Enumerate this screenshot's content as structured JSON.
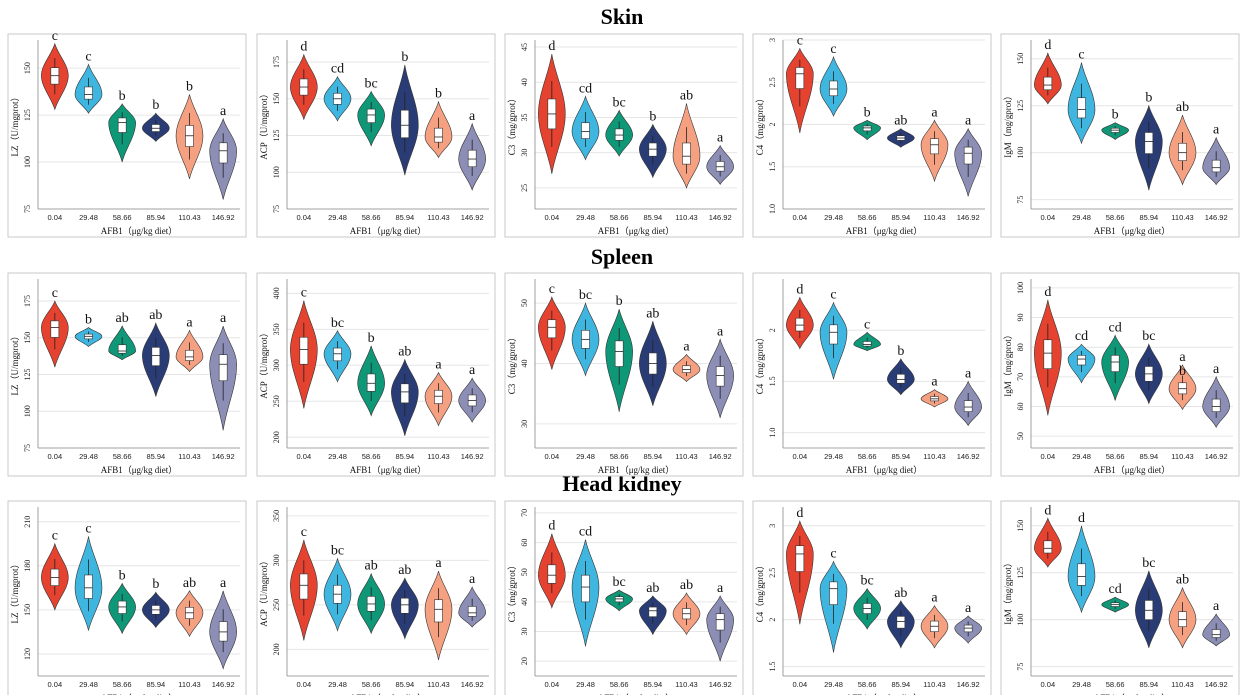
{
  "sections": [
    {
      "title": "Skin"
    },
    {
      "title": "Spleen"
    },
    {
      "title": "Head kidney"
    }
  ],
  "x_axis_label": "AFB1（μg/kg diet）",
  "x_ticks": [
    "0.04",
    "29.48",
    "58.66",
    "85.94",
    "110.43",
    "146.92"
  ],
  "colors": [
    "#e5432f",
    "#3fb6df",
    "#0e9878",
    "#2a3c75",
    "#f4a081",
    "#8c8eb6"
  ],
  "chart_data": [
    {
      "section": "Skin",
      "type": "violin",
      "ylabel": "LZ（U/mgprot）",
      "ylim": [
        75,
        165
      ],
      "yticks": [
        75,
        100,
        125,
        150
      ],
      "medians": [
        146,
        136,
        121,
        118,
        114,
        106
      ],
      "ranges": [
        [
          128,
          163
        ],
        [
          126,
          152
        ],
        [
          100,
          131
        ],
        [
          111,
          126
        ],
        [
          91,
          136
        ],
        [
          80,
          123
        ]
      ],
      "letters": [
        "c",
        "c",
        "b",
        "b",
        "b",
        "a"
      ]
    },
    {
      "section": "Skin",
      "type": "violin",
      "ylabel": "ACP（U/mgprot）",
      "ylim": [
        75,
        190
      ],
      "yticks": [
        75,
        100,
        125,
        150,
        175
      ],
      "medians": [
        158,
        150,
        139,
        132,
        124,
        109
      ],
      "ranges": [
        [
          136,
          180
        ],
        [
          135,
          165
        ],
        [
          118,
          155
        ],
        [
          98,
          173
        ],
        [
          110,
          148
        ],
        [
          88,
          133
        ]
      ],
      "letters": [
        "d",
        "cd",
        "bc",
        "b",
        "b",
        "a"
      ]
    },
    {
      "section": "Skin",
      "type": "violin",
      "ylabel": "C3（mg/gprot）",
      "ylim": [
        22,
        46
      ],
      "yticks": [
        25,
        30,
        35,
        40,
        45
      ],
      "medians": [
        35.5,
        33,
        32.5,
        30.5,
        29.5,
        28
      ],
      "ranges": [
        [
          27,
          44
        ],
        [
          29,
          38
        ],
        [
          29.5,
          36
        ],
        [
          26.5,
          34
        ],
        [
          25,
          37
        ],
        [
          25.5,
          31
        ]
      ],
      "letters": [
        "d",
        "cd",
        "bc",
        "b",
        "ab",
        "a"
      ]
    },
    {
      "section": "Skin",
      "type": "violin",
      "ylabel": "C4（mg/gprot）",
      "ylim": [
        1,
        3
      ],
      "yticks": [
        1.0,
        1.5,
        2.0,
        2.5,
        3.0
      ],
      "medians": [
        2.6,
        2.42,
        1.96,
        1.84,
        1.76,
        1.66
      ],
      "ranges": [
        [
          1.9,
          2.9
        ],
        [
          2.1,
          2.8
        ],
        [
          1.82,
          2.05
        ],
        [
          1.73,
          1.95
        ],
        [
          1.33,
          2.05
        ],
        [
          1.15,
          1.95
        ]
      ],
      "letters": [
        "c",
        "c",
        "b",
        "ab",
        "a",
        "a"
      ]
    },
    {
      "section": "Skin",
      "type": "violin",
      "ylabel": "IgM（mg/gprot）",
      "ylim": [
        70,
        160
      ],
      "yticks": [
        75,
        100,
        125,
        150
      ],
      "medians": [
        136,
        123,
        112,
        106,
        100,
        92
      ],
      "ranges": [
        [
          126,
          153
        ],
        [
          105,
          148
        ],
        [
          107,
          116
        ],
        [
          80,
          125
        ],
        [
          83,
          120
        ],
        [
          83,
          108
        ]
      ],
      "letters": [
        "d",
        "c",
        "b",
        "b",
        "ab",
        "a"
      ]
    },
    {
      "section": "Spleen",
      "type": "violin",
      "ylabel": "LZ（U/mgprot）",
      "ylim": [
        75,
        190
      ],
      "yticks": [
        75,
        100,
        125,
        150,
        175
      ],
      "medians": [
        157,
        151,
        141,
        138,
        137,
        132
      ],
      "ranges": [
        [
          130,
          175
        ],
        [
          144,
          157
        ],
        [
          135,
          158
        ],
        [
          110,
          160
        ],
        [
          127,
          155
        ],
        [
          87,
          158
        ]
      ],
      "letters": [
        "c",
        "b",
        "ab",
        "ab",
        "a",
        "a"
      ]
    },
    {
      "section": "Spleen",
      "type": "violin",
      "ylabel": "ACP（U/mgprot）",
      "ylim": [
        185,
        420
      ],
      "yticks": [
        200,
        250,
        300,
        350,
        400
      ],
      "medians": [
        322,
        316,
        275,
        263,
        257,
        251
      ],
      "ranges": [
        [
          240,
          390
        ],
        [
          277,
          348
        ],
        [
          230,
          327
        ],
        [
          202,
          308
        ],
        [
          216,
          290
        ],
        [
          221,
          282
        ]
      ],
      "letters": [
        "c",
        "bc",
        "b",
        "ab",
        "a",
        "a"
      ]
    },
    {
      "section": "Spleen",
      "type": "violin",
      "ylabel": "C3（mg/gprot）",
      "ylim": [
        26,
        54
      ],
      "yticks": [
        30,
        40,
        50
      ],
      "medians": [
        46,
        44,
        42,
        40,
        39,
        38
      ],
      "ranges": [
        [
          39,
          51
        ],
        [
          38,
          50
        ],
        [
          32,
          49
        ],
        [
          33,
          47
        ],
        [
          37,
          41.5
        ],
        [
          31,
          44
        ]
      ],
      "letters": [
        "c",
        "bc",
        "b",
        "ab",
        "a",
        "a"
      ]
    },
    {
      "section": "Spleen",
      "type": "violin",
      "ylabel": "C4（mg/gprot）",
      "ylim": [
        0.85,
        2.5
      ],
      "yticks": [
        1.0,
        1.5,
        2.0
      ],
      "medians": [
        2.05,
        1.98,
        1.86,
        1.52,
        1.33,
        1.25
      ],
      "ranges": [
        [
          1.82,
          2.32
        ],
        [
          1.52,
          2.27
        ],
        [
          1.8,
          1.98
        ],
        [
          1.37,
          1.72
        ],
        [
          1.25,
          1.42
        ],
        [
          1.07,
          1.5
        ]
      ],
      "letters": [
        "d",
        "c",
        "c",
        "b",
        "a",
        "a"
      ]
    },
    {
      "section": "Spleen",
      "type": "violin",
      "ylabel": "IgM（mg/gprot）",
      "ylim": [
        46,
        103
      ],
      "yticks": [
        50,
        60,
        70,
        80,
        90,
        100
      ],
      "medians": [
        78,
        76,
        75,
        71,
        66,
        60
      ],
      "ranges": [
        [
          57,
          96
        ],
        [
          68,
          81
        ],
        [
          62,
          84
        ],
        [
          61,
          81
        ],
        [
          59,
          74
        ],
        [
          53,
          70
        ]
      ],
      "letters": [
        "d",
        "cd",
        "cd",
        "bc",
        "a",
        "a"
      ],
      "extra_labels": [
        {
          "category": "110.43",
          "text": "b"
        }
      ]
    },
    {
      "section": "Head kidney",
      "type": "violin",
      "ylabel": "LZ（U/mgprot）",
      "ylim": [
        105,
        220
      ],
      "yticks": [
        120,
        150,
        180,
        210
      ],
      "medians": [
        172,
        165,
        152,
        150,
        148,
        135
      ],
      "ranges": [
        [
          150,
          195
        ],
        [
          136,
          200
        ],
        [
          134,
          168
        ],
        [
          138,
          162
        ],
        [
          132,
          163
        ],
        [
          110,
          163
        ]
      ],
      "letters": [
        "c",
        "c",
        "b",
        "b",
        "ab",
        "a"
      ]
    },
    {
      "section": "Head kidney",
      "type": "violin",
      "ylabel": "ACP（U/mgprot）",
      "ylim": [
        170,
        360
      ],
      "yticks": [
        200,
        250,
        300,
        350
      ],
      "medians": [
        272,
        262,
        251,
        250,
        245,
        241
      ],
      "ranges": [
        [
          210,
          323
        ],
        [
          221,
          302
        ],
        [
          218,
          285
        ],
        [
          212,
          280
        ],
        [
          188,
          288
        ],
        [
          225,
          270
        ]
      ],
      "letters": [
        "c",
        "bc",
        "ab",
        "ab",
        "a",
        "a"
      ]
    },
    {
      "section": "Head kidney",
      "type": "violin",
      "ylabel": "C3（mg/gprot）",
      "ylim": [
        15,
        72
      ],
      "yticks": [
        20,
        30,
        40,
        50,
        60,
        70
      ],
      "medians": [
        49,
        45,
        41,
        37,
        36,
        34
      ],
      "ranges": [
        [
          38,
          63
        ],
        [
          25,
          61
        ],
        [
          37,
          44
        ],
        [
          29,
          42
        ],
        [
          29,
          43
        ],
        [
          20,
          42
        ]
      ],
      "letters": [
        "d",
        "cd",
        "bc",
        "ab",
        "ab",
        "a"
      ]
    },
    {
      "section": "Head kidney",
      "type": "violin",
      "ylabel": "C4（mg/gprot）",
      "ylim": [
        1.4,
        3.2
      ],
      "yticks": [
        1.5,
        2.0,
        2.5,
        3.0
      ],
      "medians": [
        2.7,
        2.33,
        2.12,
        1.98,
        1.93,
        1.91
      ],
      "ranges": [
        [
          1.95,
          3.05
        ],
        [
          1.65,
          2.62
        ],
        [
          1.9,
          2.33
        ],
        [
          1.7,
          2.2
        ],
        [
          1.7,
          2.15
        ],
        [
          1.75,
          2.04
        ]
      ],
      "letters": [
        "d",
        "c",
        "bc",
        "ab",
        "a",
        "a"
      ]
    },
    {
      "section": "Head kidney",
      "type": "violin",
      "ylabel": "IgM（mg/gprot）",
      "ylim": [
        70,
        160
      ],
      "yticks": [
        75,
        100,
        125,
        150
      ],
      "medians": [
        138,
        123,
        108,
        105,
        100,
        92
      ],
      "ranges": [
        [
          128,
          154
        ],
        [
          104,
          150
        ],
        [
          104,
          112
        ],
        [
          85,
          126
        ],
        [
          85,
          117
        ],
        [
          86,
          103
        ]
      ],
      "letters": [
        "d",
        "d",
        "cd",
        "bc",
        "ab",
        "a"
      ]
    }
  ]
}
